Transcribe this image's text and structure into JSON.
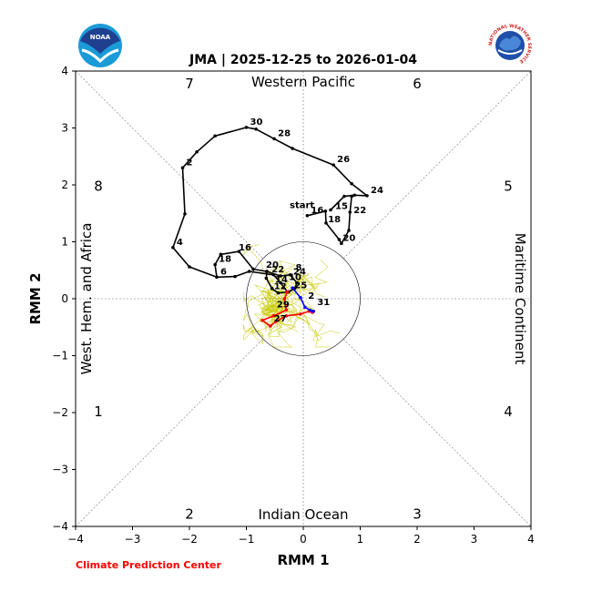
{
  "chart_data": {
    "type": "line",
    "title": "JMA | 2025-12-25 to 2026-01-04",
    "xlabel": "RMM 1",
    "ylabel": "RMM 2",
    "xlim": [
      -4,
      4
    ],
    "ylim": [
      -4,
      4
    ],
    "xticks": [
      "−4",
      "−3",
      "−2",
      "−1",
      "0",
      "1",
      "2",
      "3",
      "4"
    ],
    "yticks": [
      "−4",
      "−3",
      "−2",
      "−1",
      "0",
      "1",
      "2",
      "3",
      "4"
    ],
    "unit_circle_radius": 1,
    "region_labels": {
      "top": "Western Pacific",
      "bottom": "Indian Ocean",
      "left": "West. Hem. and Africa",
      "right": "Maritime Continent"
    },
    "phase_numbers": [
      "1",
      "2",
      "3",
      "4",
      "5",
      "6",
      "7",
      "8"
    ],
    "series": [
      {
        "color": "#000000",
        "points": [
          [
            0.48,
            1.56
          ],
          [
            0.72,
            1.8
          ],
          [
            0.9,
            1.82
          ],
          [
            1.12,
            1.81
          ],
          [
            0.85,
            2.02
          ],
          [
            0.53,
            2.35
          ],
          [
            -0.19,
            2.64
          ],
          [
            -0.51,
            2.81
          ],
          [
            -0.83,
            2.98
          ],
          [
            -1.0,
            3.01
          ],
          [
            -1.55,
            2.86
          ],
          [
            -1.87,
            2.58
          ],
          [
            -2.12,
            2.3
          ],
          [
            -2.08,
            1.49
          ],
          [
            -2.29,
            0.9
          ],
          [
            -2.0,
            0.56
          ],
          [
            -1.52,
            0.38
          ],
          [
            -1.2,
            0.39
          ],
          [
            -0.95,
            0.48
          ],
          [
            -0.52,
            0.42
          ],
          [
            -0.4,
            0.28
          ],
          [
            -0.28,
            0.12
          ],
          [
            -0.44,
            0.1
          ],
          [
            -0.55,
            0.18
          ],
          [
            -0.65,
            0.36
          ],
          [
            -0.64,
            0.48
          ],
          [
            -0.88,
            0.52
          ],
          [
            -1.13,
            0.83
          ],
          [
            -1.45,
            0.78
          ],
          [
            -1.55,
            0.6
          ],
          [
            -1.52,
            0.38
          ]
        ]
      },
      {
        "color": "#000000",
        "points": [
          [
            0.07,
            1.46
          ],
          [
            0.39,
            1.54
          ],
          [
            0.4,
            1.33
          ],
          [
            0.63,
            1.04
          ],
          [
            0.67,
            0.97
          ],
          [
            0.8,
            1.2
          ],
          [
            0.82,
            1.52
          ],
          [
            0.85,
            1.8
          ]
        ]
      },
      {
        "color": "#000000",
        "points": [
          [
            -0.64,
            0.48
          ],
          [
            -0.4,
            0.4
          ],
          [
            -0.23,
            0.42
          ],
          [
            -0.11,
            0.28
          ],
          [
            -0.15,
            0.18
          ],
          [
            -0.26,
            0.12
          ]
        ]
      },
      {
        "color": "#ff0000",
        "points": [
          [
            -0.28,
            0.12
          ],
          [
            -0.33,
            0.0
          ],
          [
            -0.3,
            -0.2
          ],
          [
            -0.52,
            -0.3
          ],
          [
            -0.72,
            -0.38
          ],
          [
            -0.58,
            -0.48
          ],
          [
            -0.48,
            -0.4
          ],
          [
            -0.3,
            -0.3
          ],
          [
            -0.05,
            -0.27
          ],
          [
            0.1,
            -0.22
          ],
          [
            0.16,
            -0.24
          ]
        ]
      },
      {
        "color": "#0000ff",
        "points": [
          [
            -0.19,
            0.19
          ],
          [
            -0.05,
            0.02
          ],
          [
            0.03,
            -0.15
          ],
          [
            0.12,
            -0.2
          ],
          [
            0.18,
            -0.22
          ]
        ]
      }
    ],
    "point_labels": [
      {
        "text": "start",
        "x": 0.48,
        "y": 1.56
      },
      {
        "text": "15",
        "x": 0.48,
        "y": 1.56
      },
      {
        "text": "16",
        "x": 0.07,
        "y": 1.46
      },
      {
        "text": "18",
        "x": 0.37,
        "y": 1.3
      },
      {
        "text": "20",
        "x": 0.63,
        "y": 0.97
      },
      {
        "text": "22",
        "x": 0.82,
        "y": 1.46
      },
      {
        "text": "24",
        "x": 1.12,
        "y": 1.81
      },
      {
        "text": "26",
        "x": 0.53,
        "y": 2.35
      },
      {
        "text": "28",
        "x": -0.51,
        "y": 2.81
      },
      {
        "text": "30",
        "x": -1.0,
        "y": 3.01
      },
      {
        "text": "2",
        "x": -2.12,
        "y": 2.3
      },
      {
        "text": "4",
        "x": -2.29,
        "y": 0.9
      },
      {
        "text": "6",
        "x": -1.52,
        "y": 0.38
      },
      {
        "text": "8",
        "x": -0.2,
        "y": 0.45
      },
      {
        "text": "16",
        "x": -1.2,
        "y": 0.8
      },
      {
        "text": "18",
        "x": -1.55,
        "y": 0.6
      },
      {
        "text": "20",
        "x": -0.72,
        "y": 0.5
      },
      {
        "text": "22",
        "x": -0.62,
        "y": 0.42
      },
      {
        "text": "24",
        "x": -0.24,
        "y": 0.38
      },
      {
        "text": "10",
        "x": -0.32,
        "y": 0.28
      },
      {
        "text": "14",
        "x": -0.56,
        "y": 0.24
      },
      {
        "text": "12",
        "x": -0.58,
        "y": 0.12
      },
      {
        "text": "25",
        "x": -0.22,
        "y": 0.14
      },
      {
        "text": "2",
        "x": 0.02,
        "y": -0.05
      },
      {
        "text": "31",
        "x": 0.18,
        "y": -0.16
      },
      {
        "text": "29",
        "x": -0.53,
        "y": -0.2
      },
      {
        "text": "27",
        "x": -0.58,
        "y": -0.45
      }
    ],
    "ensemble_color": "#c8c800",
    "ensemble_cloud_center": [
      -0.45,
      -0.1
    ],
    "grid": false
  },
  "footer": {
    "credit": "Climate Prediction Center"
  },
  "logos": {
    "noaa": {
      "text": "NOAA"
    },
    "nws": {
      "text": "NATIONAL WEATHER SERVICE"
    }
  }
}
